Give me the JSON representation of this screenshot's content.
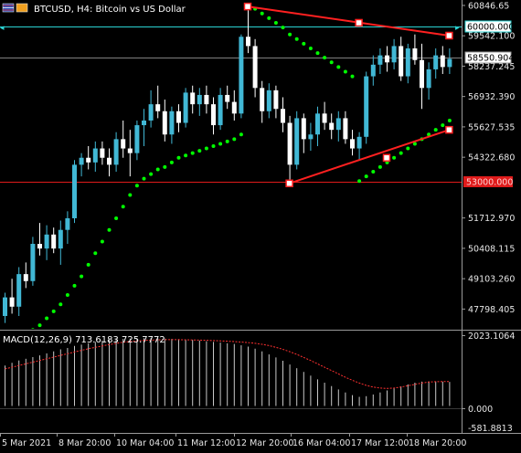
{
  "header": {
    "symbol_line": "BTCUSD, H4:  Bitcoin vs US Dollar",
    "icon": "flag-icon"
  },
  "indicator": {
    "macd_label": "MACD(12,26,9) 713.6183 725.7772"
  },
  "colors": {
    "background": "#000000",
    "bull_candle": "#41b8d5",
    "bear_candle": "#ffffff",
    "parabolic_sar": "#00ff00",
    "trendline": "#ff2020",
    "bid_line": "#7f7f7f",
    "horizontal_line": "#e01b1b",
    "level_60000": "#2bd3d3",
    "macd_signal": "#ff3030",
    "macd_hist": "#c8c8c8"
  },
  "price_axis": {
    "ticks": [
      "60846.65",
      "59542.100",
      "58237.245",
      "56932.390",
      "55627.535",
      "54322.680",
      "51712.970",
      "50408.115",
      "49103.260",
      "47798.405"
    ],
    "badge_60000": "60000.000",
    "badge_bid": "58550.904",
    "badge_line": "53000.000"
  },
  "macd_axis": {
    "ticks": [
      "2023.1064",
      "0.000",
      "-581.8813"
    ]
  },
  "time_axis": {
    "ticks": [
      "5 Mar 2021",
      "8 Mar 20:00",
      "10 Mar 04:00",
      "11 Mar 12:00",
      "12 Mar 20:00",
      "16 Mar 04:00",
      "17 Mar 12:00",
      "18 Mar 20:00"
    ]
  },
  "chart_data": {
    "type": "candlestick",
    "symbol": "BTCUSD",
    "timeframe": "H4",
    "price_range": [
      46950,
      61080
    ],
    "levels": {
      "resistance": 60000.0,
      "bid": 58550.904,
      "horizontal": 53000.0
    },
    "candles": [
      [
        47500,
        48500,
        47200,
        48300
      ],
      [
        48300,
        49100,
        47600,
        47900
      ],
      [
        47900,
        49600,
        47500,
        49300
      ],
      [
        49300,
        49800,
        48700,
        49000
      ],
      [
        49000,
        50900,
        48800,
        50600
      ],
      [
        50600,
        51500,
        50100,
        50400
      ],
      [
        50400,
        51400,
        49900,
        51000
      ],
      [
        51000,
        51300,
        50200,
        50400
      ],
      [
        50400,
        51600,
        49700,
        51200
      ],
      [
        51200,
        52000,
        50600,
        51700
      ],
      [
        51700,
        54200,
        51500,
        54000
      ],
      [
        54000,
        54500,
        53500,
        54300
      ],
      [
        54300,
        54800,
        53800,
        54100
      ],
      [
        54100,
        55000,
        53700,
        54700
      ],
      [
        54700,
        55000,
        54000,
        54300
      ],
      [
        54300,
        54700,
        53500,
        54000
      ],
      [
        54000,
        55400,
        53700,
        55100
      ],
      [
        55100,
        55900,
        54300,
        54700
      ],
      [
        54700,
        55500,
        53500,
        54500
      ],
      [
        54500,
        55900,
        54200,
        55700
      ],
      [
        55700,
        56400,
        54800,
        55900
      ],
      [
        55900,
        57200,
        55600,
        56600
      ],
      [
        56600,
        57400,
        56000,
        56300
      ],
      [
        56300,
        56800,
        55000,
        55300
      ],
      [
        55300,
        56500,
        54900,
        56300
      ],
      [
        56300,
        56600,
        55400,
        55800
      ],
      [
        55800,
        57300,
        55600,
        57100
      ],
      [
        57100,
        57400,
        56200,
        56600
      ],
      [
        56600,
        57300,
        56100,
        57000
      ],
      [
        57000,
        57400,
        56200,
        56600
      ],
      [
        56600,
        56900,
        55300,
        55700
      ],
      [
        55700,
        57300,
        55500,
        57000
      ],
      [
        57000,
        57400,
        56400,
        56700
      ],
      [
        56700,
        57200,
        55900,
        56200
      ],
      [
        56200,
        59600,
        56000,
        59500
      ],
      [
        59500,
        60800,
        58800,
        59100
      ],
      [
        59100,
        59400,
        56900,
        57300
      ],
      [
        57300,
        57600,
        55800,
        56300
      ],
      [
        56300,
        57500,
        56000,
        57200
      ],
      [
        57200,
        57400,
        56000,
        56400
      ],
      [
        56400,
        56900,
        55400,
        55800
      ],
      [
        55800,
        56100,
        53200,
        54000
      ],
      [
        54000,
        56300,
        53800,
        56000
      ],
      [
        56000,
        56200,
        54500,
        55100
      ],
      [
        55100,
        55800,
        54600,
        55300
      ],
      [
        55300,
        56500,
        54800,
        56200
      ],
      [
        56200,
        56700,
        55500,
        55800
      ],
      [
        55800,
        56200,
        55100,
        55500
      ],
      [
        55500,
        56300,
        55000,
        56000
      ],
      [
        56000,
        56300,
        54900,
        55100
      ],
      [
        55100,
        55500,
        54400,
        54700
      ],
      [
        54700,
        55400,
        54200,
        55200
      ],
      [
        55200,
        58000,
        54900,
        57800
      ],
      [
        57800,
        58700,
        57400,
        58300
      ],
      [
        58300,
        59000,
        57900,
        58700
      ],
      [
        58700,
        59100,
        58000,
        58400
      ],
      [
        58400,
        59400,
        58100,
        59100
      ],
      [
        59100,
        59500,
        57600,
        57800
      ],
      [
        57800,
        59200,
        57500,
        59000
      ],
      [
        59000,
        59600,
        58300,
        58500
      ],
      [
        58500,
        59200,
        56400,
        57300
      ],
      [
        57300,
        58400,
        56800,
        58100
      ],
      [
        58100,
        59000,
        57700,
        58700
      ],
      [
        58700,
        59100,
        57900,
        58200
      ],
      [
        58200,
        59000,
        57900,
        58550.904
      ]
    ],
    "parabolic_sar": [
      46100,
      46300,
      46500,
      46700,
      46900,
      47100,
      47400,
      47700,
      48000,
      48400,
      48800,
      49200,
      49700,
      50200,
      50700,
      51200,
      51700,
      52200,
      52700,
      53100,
      53400,
      53600,
      53800,
      53900,
      54100,
      54300,
      54400,
      54500,
      54600,
      54700,
      54800,
      54900,
      55000,
      55100,
      55300,
      60800,
      60700,
      60500,
      60300,
      60100,
      59900,
      59600,
      59400,
      59200,
      59000,
      58800,
      58600,
      58400,
      58200,
      58000,
      57800,
      53300,
      53500,
      53700,
      53900,
      54100,
      54300,
      54500,
      54700,
      54900,
      55100,
      55300,
      55500,
      55700,
      55900
    ],
    "trendlines": [
      {
        "from": {
          "candle": 35,
          "price": 60800
        },
        "to": {
          "candle": 64,
          "price": 59550
        },
        "anchor": {
          "candle": 51,
          "price": 60100
        }
      },
      {
        "from": {
          "candle": 41,
          "price": 53200
        },
        "to": {
          "candle": 64,
          "price": 55500
        },
        "anchor": {
          "candle": 55,
          "price": 54300
        }
      }
    ],
    "macd_range": [
      -800,
      2100
    ],
    "macd": [
      1200,
      1280,
      1350,
      1400,
      1450,
      1500,
      1560,
      1620,
      1680,
      1720,
      1780,
      1820,
      1860,
      1900,
      1940,
      1960,
      1980,
      1990,
      2000,
      2005,
      2010,
      2010,
      2005,
      2000,
      1990,
      1980,
      1970,
      1960,
      1940,
      1920,
      1900,
      1880,
      1860,
      1840,
      1800,
      1760,
      1700,
      1620,
      1530,
      1440,
      1340,
      1230,
      1120,
      1010,
      900,
      790,
      690,
      590,
      490,
      400,
      320,
      270,
      290,
      340,
      400,
      460,
      520,
      580,
      640,
      690,
      720,
      730,
      725,
      720,
      713.6183
    ],
    "signal": [
      1100,
      1150,
      1200,
      1250,
      1300,
      1350,
      1400,
      1450,
      1500,
      1550,
      1600,
      1650,
      1700,
      1740,
      1780,
      1820,
      1860,
      1890,
      1910,
      1930,
      1945,
      1955,
      1962,
      1966,
      1967,
      1966,
      1963,
      1959,
      1954,
      1948,
      1940,
      1931,
      1920,
      1909,
      1896,
      1880,
      1860,
      1830,
      1790,
      1740,
      1680,
      1610,
      1530,
      1440,
      1350,
      1250,
      1150,
      1050,
      950,
      850,
      760,
      680,
      610,
      560,
      530,
      520,
      530,
      560,
      600,
      640,
      680,
      710,
      720,
      724,
      725.7772
    ]
  }
}
